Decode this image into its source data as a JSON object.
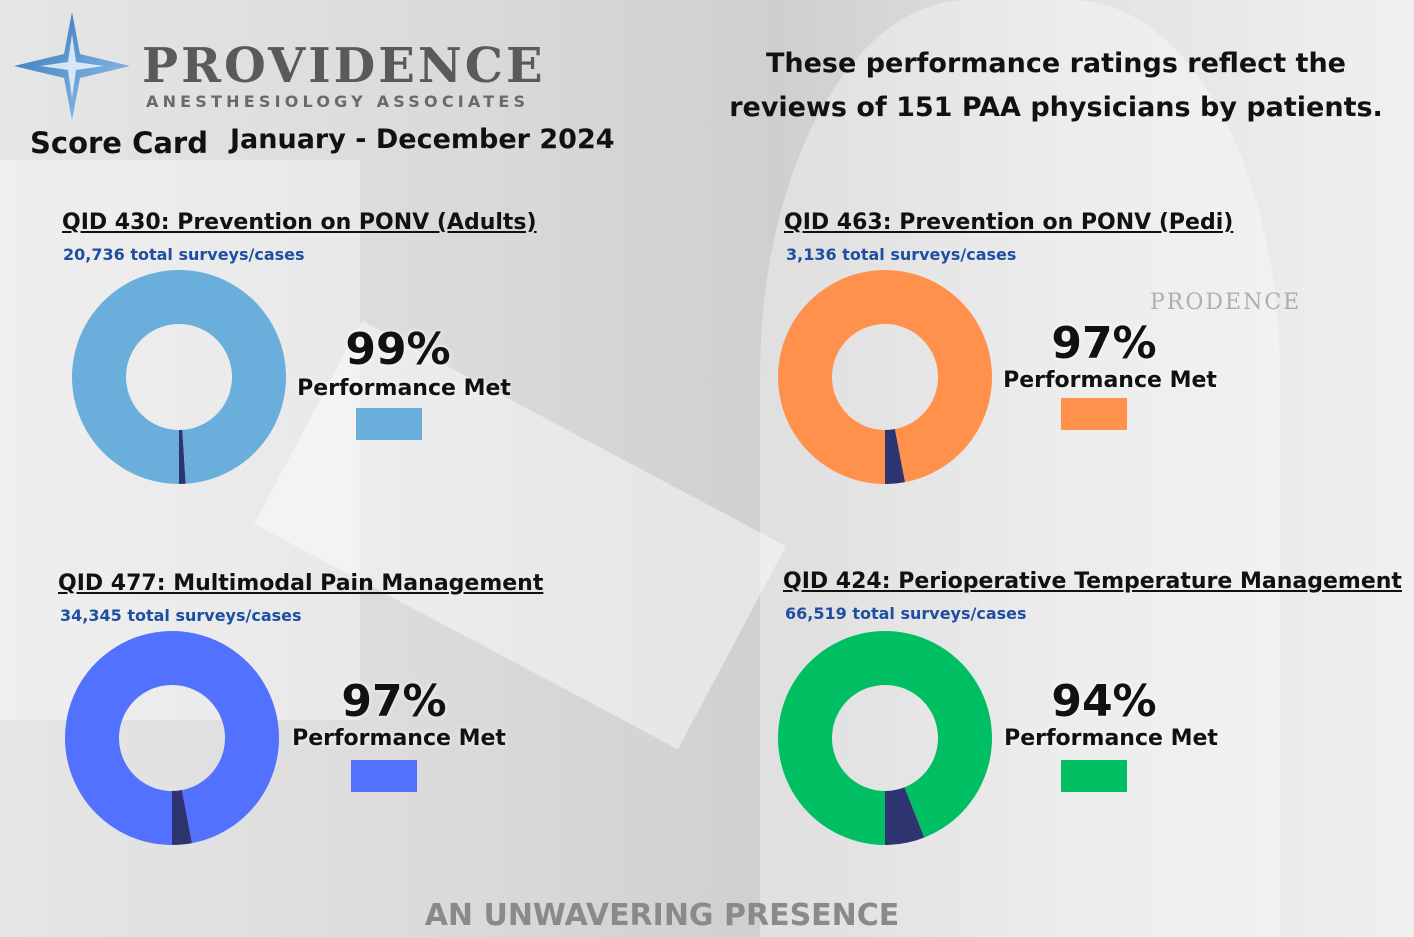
{
  "logo": {
    "name": "PROVIDENCE",
    "subtitle": "ANESTHESIOLOGY ASSOCIATES",
    "icon": "four-point-star-icon"
  },
  "header": {
    "score_card": "Score Card",
    "period": "January - December 2024"
  },
  "headline": {
    "line1": "These performance ratings reflect the",
    "line2": "reviews of 151 PAA physicians by patients."
  },
  "background": {
    "watermark": "PRODENCE"
  },
  "colors": {
    "met_adults": "#6aaedc",
    "met_pedi": "#ff914d",
    "met_pain": "#5271ff",
    "met_temp": "#00bf63",
    "not_met": "#2e3470"
  },
  "chart_data": [
    {
      "type": "pie",
      "title": "QID 430: Prevention on PONV (Adults)",
      "subtitle": "20,736 total surveys/cases",
      "categories": [
        "Performance Met",
        ""
      ],
      "values": [
        99,
        1
      ],
      "label": "99%",
      "legend": "Performance Met",
      "colors": [
        "#6aaedc",
        "#2e3470"
      ]
    },
    {
      "type": "pie",
      "title": "QID 463: Prevention on PONV (Pedi)",
      "subtitle": "3,136 total surveys/cases",
      "categories": [
        "Performance Met",
        ""
      ],
      "values": [
        97,
        3
      ],
      "label": "97%",
      "legend": "Performance Met",
      "colors": [
        "#ff914d",
        "#2e3470"
      ]
    },
    {
      "type": "pie",
      "title": "QID 477: Multimodal Pain Management",
      "subtitle": "34,345 total surveys/cases",
      "categories": [
        "Performance Met",
        ""
      ],
      "values": [
        97,
        3
      ],
      "label": "97%",
      "legend": "Performance Met",
      "colors": [
        "#5271ff",
        "#2e3470"
      ]
    },
    {
      "type": "pie",
      "title": "QID 424: Perioperative Temperature Management",
      "subtitle": "66,519 total surveys/cases",
      "categories": [
        "Performance Met",
        ""
      ],
      "values": [
        94,
        6
      ],
      "label": "94%",
      "legend": "Performance Met",
      "colors": [
        "#00bf63",
        "#2e3470"
      ]
    }
  ],
  "footer": {
    "tagline": "AN UNWAVERING PRESENCE"
  }
}
